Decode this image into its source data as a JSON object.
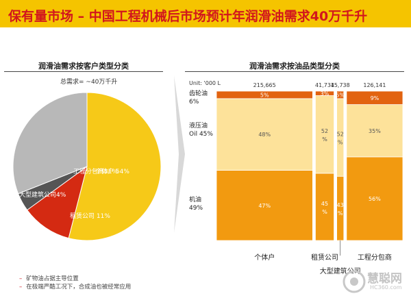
{
  "title": "保有量市场 – 中国工程机械后市场预计年润滑油需求40万千升",
  "left": {
    "section_title": "润滑油需求按客户类型分类",
    "subtitle": "总需求= ~40万千升"
  },
  "right": {
    "section_title": "润滑油需求按油品类型分类",
    "unit_label": "Unit: '000 L"
  },
  "notes": [
    "矿物油占据主导位置",
    "在极端严酷工况下，合成油也被经常应用"
  ],
  "watermark": {
    "text": "慧聪网",
    "url": "HC360.com"
  },
  "chart_data": [
    {
      "type": "pie",
      "slices": [
        {
          "name": "个体户",
          "value": 54,
          "label": "个体户 54%",
          "color": "#f6c918"
        },
        {
          "name": "租赁公司",
          "value": 11,
          "label": "租赁公司 11%",
          "color": "#d42a12"
        },
        {
          "name": "大型建筑公司",
          "value": 4,
          "label": "大型建筑公司4%",
          "color": "#555555"
        },
        {
          "name": "工程分包商",
          "value": 31,
          "label": "工程分包商31%",
          "color": "#b8b8b8"
        }
      ]
    },
    {
      "type": "bar",
      "subtype": "mekko",
      "categories": [
        "个体户",
        "租赁公司",
        "大型建筑公司",
        "工程分包商"
      ],
      "widths": [
        215665,
        41734,
        15738,
        126141
      ],
      "width_labels": [
        "215,665",
        "41,734",
        "15,738",
        "126,141"
      ],
      "series": [
        {
          "name": "机油",
          "label": "机油 49%",
          "values": [
            47,
            45,
            43,
            56
          ],
          "labels": [
            "47%",
            "45 %",
            "43 %",
            "56%"
          ],
          "color": "#f29a10"
        },
        {
          "name": "液压油",
          "label": "液压油 Oil 45%",
          "values": [
            48,
            52,
            52,
            35
          ],
          "labels": [
            "48%",
            "52 %",
            "52 %",
            "35%"
          ],
          "color": "#fde29a"
        },
        {
          "name": "齿轮油",
          "label": "齿轮油 6%",
          "values": [
            5,
            3,
            5,
            9
          ],
          "labels": [
            "5%",
            "3%",
            "5%",
            "9%"
          ],
          "color": "#e26310"
        }
      ]
    }
  ]
}
